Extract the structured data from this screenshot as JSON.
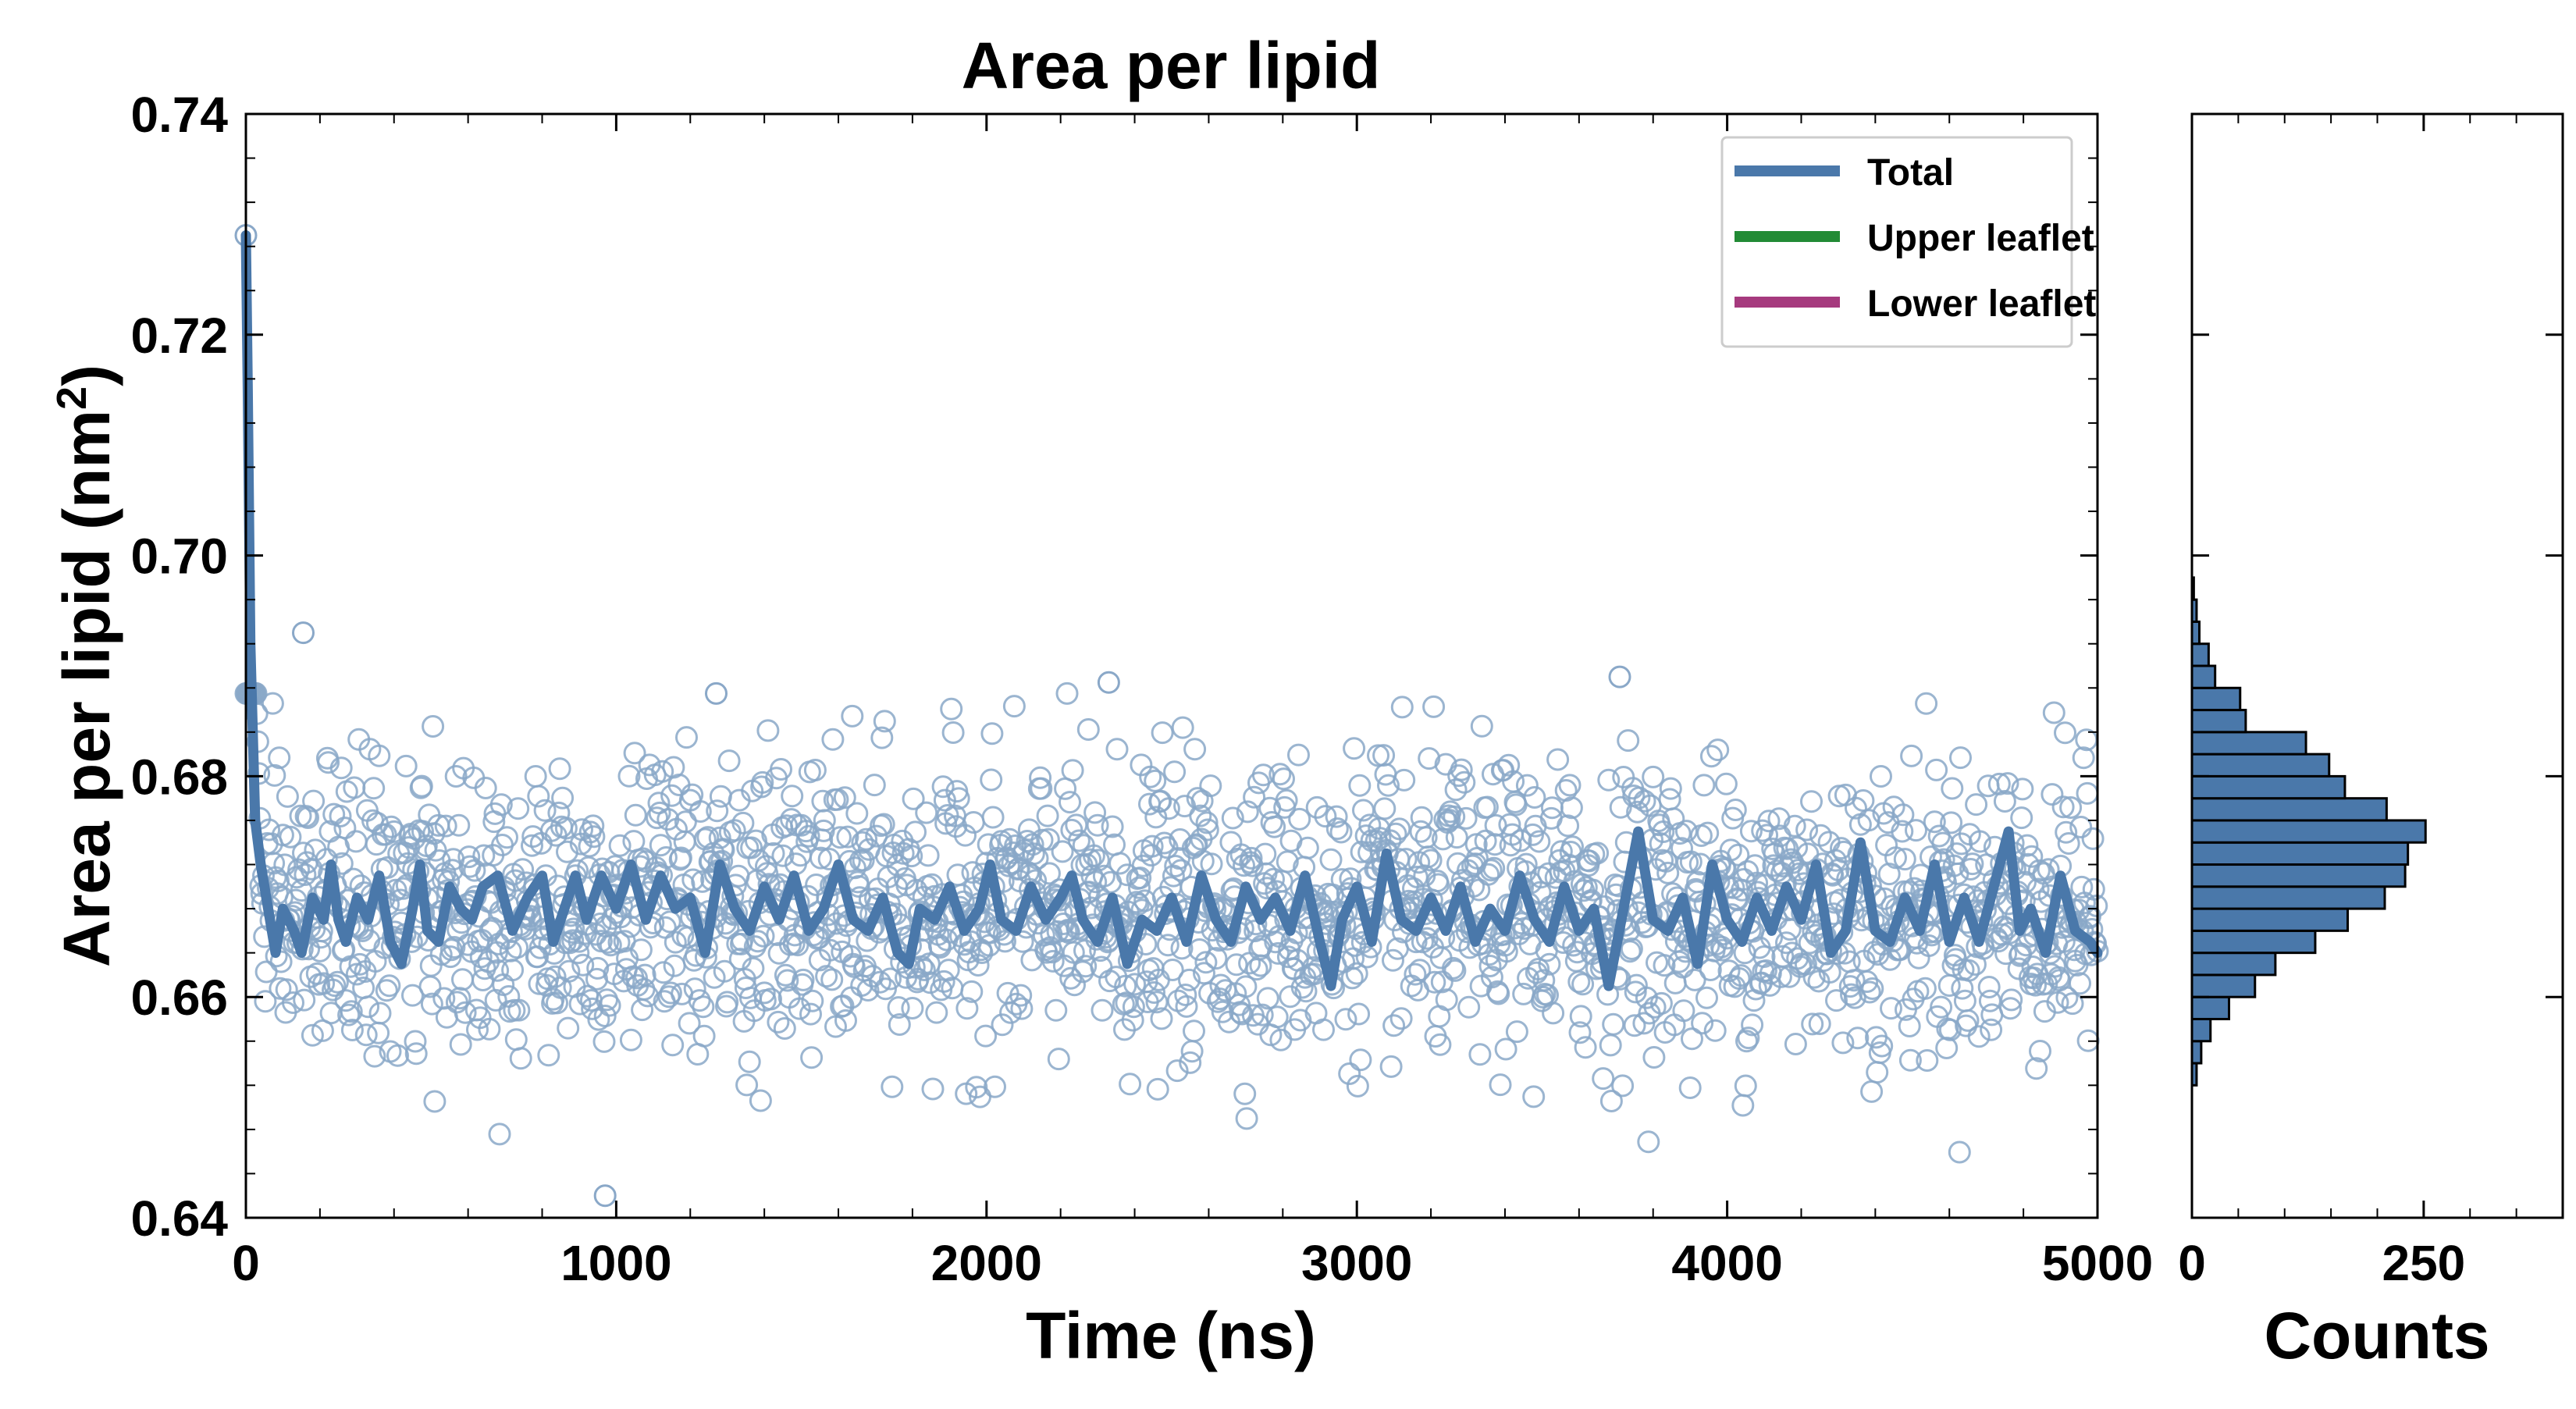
{
  "chart_data": [
    {
      "type": "scatter",
      "title": "Area per lipid",
      "xlabel": "Time (ns)",
      "ylabel": "Area per lipid (nm²)",
      "ylabel_main": "Area per lipid (nm",
      "ylabel_sup": "2",
      "ylabel_close": ")",
      "xlim": [
        0,
        5000
      ],
      "ylim": [
        0.64,
        0.74
      ],
      "xticks": [
        0,
        1000,
        2000,
        3000,
        4000,
        5000
      ],
      "xtick_labels": [
        "0",
        "1000",
        "2000",
        "3000",
        "4000",
        "5000"
      ],
      "yticks": [
        0.64,
        0.66,
        0.68,
        0.7,
        0.72,
        0.74
      ],
      "ytick_labels": [
        "0.64",
        "0.66",
        "0.68",
        "0.70",
        "0.72",
        "0.74"
      ],
      "grid": false,
      "legend_position": "top-right",
      "legend": [
        {
          "label": "Total",
          "color": "#4a78aa"
        },
        {
          "label": "Upper leaflet",
          "color": "#228b35"
        },
        {
          "label": "Lower leaflet",
          "color": "#a63a7e"
        }
      ],
      "series": [
        {
          "name": "Total",
          "kind": "raw scatter (open circles)",
          "color": "#8aa8c8",
          "sampling_interval_ns": 2.5,
          "initial_value": 0.729,
          "mean": 0.668,
          "std": 0.0065,
          "notable_points": [
            {
              "x": 0,
              "y": 0.729
            },
            {
              "x": 155,
              "y": 0.693
            },
            {
              "x": 1270,
              "y": 0.6875
            },
            {
              "x": 2330,
              "y": 0.6885
            },
            {
              "x": 3710,
              "y": 0.689
            },
            {
              "x": 970,
              "y": 0.642
            }
          ]
        },
        {
          "name": "Total",
          "kind": "running average line",
          "color": "#4a78aa",
          "points": [
            [
              0,
              0.729
            ],
            [
              5,
              0.715
            ],
            [
              12,
              0.692
            ],
            [
              25,
              0.676
            ],
            [
              40,
              0.672
            ],
            [
              60,
              0.668
            ],
            [
              80,
              0.664
            ],
            [
              100,
              0.668
            ],
            [
              130,
              0.666
            ],
            [
              150,
              0.664
            ],
            [
              180,
              0.669
            ],
            [
              210,
              0.667
            ],
            [
              230,
              0.672
            ],
            [
              250,
              0.667
            ],
            [
              270,
              0.665
            ],
            [
              300,
              0.669
            ],
            [
              330,
              0.667
            ],
            [
              360,
              0.671
            ],
            [
              390,
              0.665
            ],
            [
              420,
              0.663
            ],
            [
              450,
              0.668
            ],
            [
              470,
              0.672
            ],
            [
              490,
              0.666
            ],
            [
              520,
              0.665
            ],
            [
              550,
              0.67
            ],
            [
              580,
              0.668
            ],
            [
              610,
              0.667
            ],
            [
              640,
              0.67
            ],
            [
              680,
              0.671
            ],
            [
              720,
              0.666
            ],
            [
              760,
              0.669
            ],
            [
              800,
              0.671
            ],
            [
              830,
              0.665
            ],
            [
              860,
              0.668
            ],
            [
              890,
              0.671
            ],
            [
              920,
              0.667
            ],
            [
              960,
              0.671
            ],
            [
              1000,
              0.668
            ],
            [
              1040,
              0.672
            ],
            [
              1080,
              0.667
            ],
            [
              1120,
              0.671
            ],
            [
              1160,
              0.668
            ],
            [
              1200,
              0.669
            ],
            [
              1240,
              0.664
            ],
            [
              1280,
              0.672
            ],
            [
              1320,
              0.668
            ],
            [
              1360,
              0.666
            ],
            [
              1400,
              0.67
            ],
            [
              1440,
              0.667
            ],
            [
              1480,
              0.671
            ],
            [
              1520,
              0.666
            ],
            [
              1560,
              0.668
            ],
            [
              1600,
              0.672
            ],
            [
              1640,
              0.667
            ],
            [
              1680,
              0.666
            ],
            [
              1720,
              0.669
            ],
            [
              1760,
              0.664
            ],
            [
              1790,
              0.663
            ],
            [
              1820,
              0.668
            ],
            [
              1860,
              0.667
            ],
            [
              1900,
              0.67
            ],
            [
              1940,
              0.666
            ],
            [
              1980,
              0.668
            ],
            [
              2010,
              0.672
            ],
            [
              2040,
              0.667
            ],
            [
              2080,
              0.666
            ],
            [
              2120,
              0.67
            ],
            [
              2160,
              0.667
            ],
            [
              2200,
              0.669
            ],
            [
              2230,
              0.671
            ],
            [
              2260,
              0.667
            ],
            [
              2300,
              0.665
            ],
            [
              2340,
              0.669
            ],
            [
              2380,
              0.663
            ],
            [
              2420,
              0.667
            ],
            [
              2460,
              0.666
            ],
            [
              2500,
              0.669
            ],
            [
              2540,
              0.665
            ],
            [
              2580,
              0.671
            ],
            [
              2620,
              0.667
            ],
            [
              2660,
              0.665
            ],
            [
              2700,
              0.67
            ],
            [
              2740,
              0.667
            ],
            [
              2780,
              0.669
            ],
            [
              2820,
              0.666
            ],
            [
              2860,
              0.671
            ],
            [
              2900,
              0.665
            ],
            [
              2930,
              0.661
            ],
            [
              2960,
              0.667
            ],
            [
              3000,
              0.67
            ],
            [
              3040,
              0.665
            ],
            [
              3080,
              0.673
            ],
            [
              3120,
              0.667
            ],
            [
              3160,
              0.666
            ],
            [
              3200,
              0.669
            ],
            [
              3240,
              0.666
            ],
            [
              3280,
              0.67
            ],
            [
              3320,
              0.665
            ],
            [
              3360,
              0.668
            ],
            [
              3400,
              0.666
            ],
            [
              3440,
              0.671
            ],
            [
              3480,
              0.667
            ],
            [
              3520,
              0.665
            ],
            [
              3560,
              0.67
            ],
            [
              3600,
              0.666
            ],
            [
              3640,
              0.668
            ],
            [
              3680,
              0.661
            ],
            [
              3720,
              0.668
            ],
            [
              3760,
              0.675
            ],
            [
              3800,
              0.667
            ],
            [
              3840,
              0.666
            ],
            [
              3880,
              0.669
            ],
            [
              3920,
              0.663
            ],
            [
              3960,
              0.672
            ],
            [
              4000,
              0.667
            ],
            [
              4040,
              0.665
            ],
            [
              4080,
              0.669
            ],
            [
              4120,
              0.666
            ],
            [
              4160,
              0.67
            ],
            [
              4200,
              0.667
            ],
            [
              4240,
              0.672
            ],
            [
              4280,
              0.664
            ],
            [
              4320,
              0.666
            ],
            [
              4360,
              0.674
            ],
            [
              4400,
              0.666
            ],
            [
              4440,
              0.665
            ],
            [
              4480,
              0.669
            ],
            [
              4520,
              0.666
            ],
            [
              4560,
              0.672
            ],
            [
              4600,
              0.665
            ],
            [
              4640,
              0.669
            ],
            [
              4680,
              0.665
            ],
            [
              4720,
              0.67
            ],
            [
              4760,
              0.675
            ],
            [
              4790,
              0.666
            ],
            [
              4820,
              0.668
            ],
            [
              4860,
              0.664
            ],
            [
              4900,
              0.671
            ],
            [
              4940,
              0.666
            ],
            [
              4980,
              0.665
            ],
            [
              5000,
              0.664
            ]
          ]
        }
      ]
    },
    {
      "type": "bar",
      "orientation": "horizontal",
      "xlabel": "Counts",
      "xlim": [
        0,
        400
      ],
      "xticks": [
        0,
        250
      ],
      "xtick_labels": [
        "0",
        "250"
      ],
      "ylim": [
        0.64,
        0.74
      ],
      "bar_color": "#4a78aa",
      "bin_width": 0.002,
      "bins": [
        {
          "y0": 0.652,
          "y1": 0.654,
          "count": 5
        },
        {
          "y0": 0.654,
          "y1": 0.656,
          "count": 10
        },
        {
          "y0": 0.656,
          "y1": 0.658,
          "count": 20
        },
        {
          "y0": 0.658,
          "y1": 0.66,
          "count": 40
        },
        {
          "y0": 0.66,
          "y1": 0.662,
          "count": 68
        },
        {
          "y0": 0.662,
          "y1": 0.664,
          "count": 90
        },
        {
          "y0": 0.664,
          "y1": 0.666,
          "count": 133
        },
        {
          "y0": 0.666,
          "y1": 0.668,
          "count": 168
        },
        {
          "y0": 0.668,
          "y1": 0.67,
          "count": 208
        },
        {
          "y0": 0.67,
          "y1": 0.672,
          "count": 230
        },
        {
          "y0": 0.672,
          "y1": 0.674,
          "count": 233
        },
        {
          "y0": 0.674,
          "y1": 0.676,
          "count": 252
        },
        {
          "y0": 0.676,
          "y1": 0.678,
          "count": 210
        },
        {
          "y0": 0.678,
          "y1": 0.68,
          "count": 165
        },
        {
          "y0": 0.68,
          "y1": 0.682,
          "count": 148
        },
        {
          "y0": 0.682,
          "y1": 0.684,
          "count": 123
        },
        {
          "y0": 0.684,
          "y1": 0.686,
          "count": 58
        },
        {
          "y0": 0.686,
          "y1": 0.688,
          "count": 52
        },
        {
          "y0": 0.688,
          "y1": 0.69,
          "count": 25
        },
        {
          "y0": 0.69,
          "y1": 0.692,
          "count": 18
        },
        {
          "y0": 0.692,
          "y1": 0.694,
          "count": 8
        },
        {
          "y0": 0.694,
          "y1": 0.696,
          "count": 5
        },
        {
          "y0": 0.696,
          "y1": 0.698,
          "count": 2
        }
      ]
    }
  ]
}
